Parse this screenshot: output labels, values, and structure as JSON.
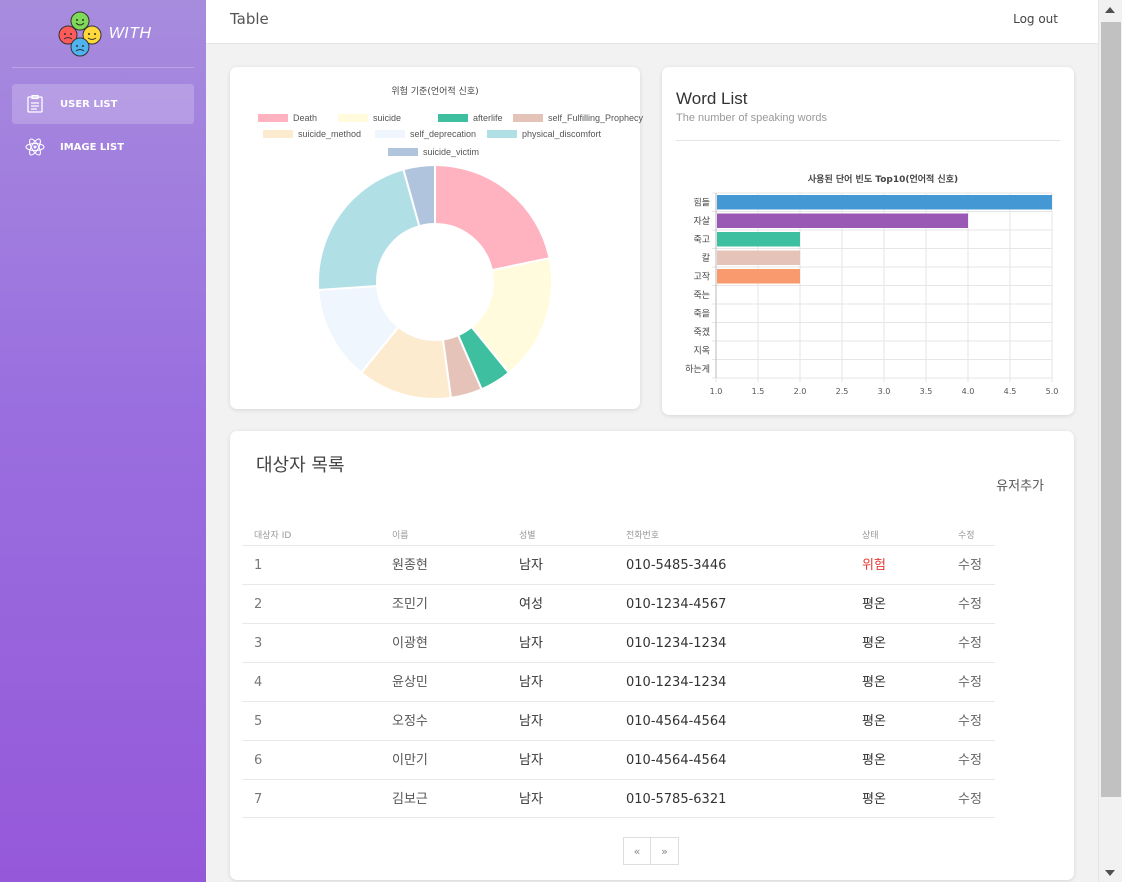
{
  "app": {
    "brand": "WITH"
  },
  "sidebar": {
    "items": [
      {
        "label": "USER LIST",
        "icon": "clipboard-icon",
        "active": true
      },
      {
        "label": "IMAGE LIST",
        "icon": "atom-icon",
        "active": false
      }
    ]
  },
  "header": {
    "title": "Table",
    "logout_label": "Log out"
  },
  "chart_data": [
    {
      "type": "pie",
      "title": "위험 기준(언어적 신호)",
      "categories": [
        "Death",
        "suicide",
        "afterlife",
        "self_Fulfilling_Prophecy",
        "suicide_method",
        "self_deprecation",
        "physical_discomfort",
        "suicide_victim"
      ],
      "values": [
        5,
        4,
        1,
        1,
        3,
        3,
        5,
        1
      ],
      "colors": [
        "#ffb3c1",
        "#fffbdc",
        "#3dbfa0",
        "#e6c3b8",
        "#fdebd0",
        "#f0f6fd",
        "#b0e0e6",
        "#b0c4de"
      ],
      "legend": "top"
    },
    {
      "type": "bar",
      "orientation": "horizontal",
      "title": "사용된 단어 빈도 Top10(언어적 신호)",
      "categories": [
        "힘들",
        "자살",
        "죽고",
        "칼",
        "고작",
        "죽는",
        "죽을",
        "죽겠",
        "지옥",
        "하는게"
      ],
      "values": [
        5,
        4,
        2,
        2,
        2,
        1,
        1,
        1,
        1,
        1
      ],
      "colors": [
        "#4499d4",
        "#9b59b6",
        "#3dbfa0",
        "#e6c3b8",
        "#f99a6e",
        "#cccccc",
        "#cccccc",
        "#cccccc",
        "#cccccc",
        "#cccccc"
      ],
      "xlim": [
        1,
        5
      ],
      "xticks": [
        "1.0",
        "1.5",
        "2.0",
        "2.5",
        "3.0",
        "3.5",
        "4.0",
        "4.5",
        "5.0"
      ]
    }
  ],
  "word_list": {
    "title": "Word List",
    "subtitle": "The number of speaking words"
  },
  "table": {
    "heading": "대상자 목록",
    "add_label": "유저추가",
    "columns": [
      "대상자 ID",
      "이름",
      "성별",
      "전화번호",
      "상태",
      "수정"
    ],
    "rows": [
      {
        "id": "1",
        "name": "원종현",
        "gender": "남자",
        "phone": "010-5485-3446",
        "status": "위험",
        "edit": "수정"
      },
      {
        "id": "2",
        "name": "조민기",
        "gender": "여성",
        "phone": "010-1234-4567",
        "status": "평온",
        "edit": "수정"
      },
      {
        "id": "3",
        "name": "이광현",
        "gender": "남자",
        "phone": "010-1234-1234",
        "status": "평온",
        "edit": "수정"
      },
      {
        "id": "4",
        "name": "윤상민",
        "gender": "남자",
        "phone": "010-1234-1234",
        "status": "평온",
        "edit": "수정"
      },
      {
        "id": "5",
        "name": "오정수",
        "gender": "남자",
        "phone": "010-4564-4564",
        "status": "평온",
        "edit": "수정"
      },
      {
        "id": "6",
        "name": "이만기",
        "gender": "남자",
        "phone": "010-4564-4564",
        "status": "평온",
        "edit": "수정"
      },
      {
        "id": "7",
        "name": "김보근",
        "gender": "남자",
        "phone": "010-5785-6321",
        "status": "평온",
        "edit": "수정"
      }
    ],
    "pager": {
      "prev": "«",
      "next": "»"
    }
  },
  "colors": {
    "danger": "#e53935",
    "sidebar_top": "#a78cde",
    "sidebar_bottom": "#9558d9"
  }
}
